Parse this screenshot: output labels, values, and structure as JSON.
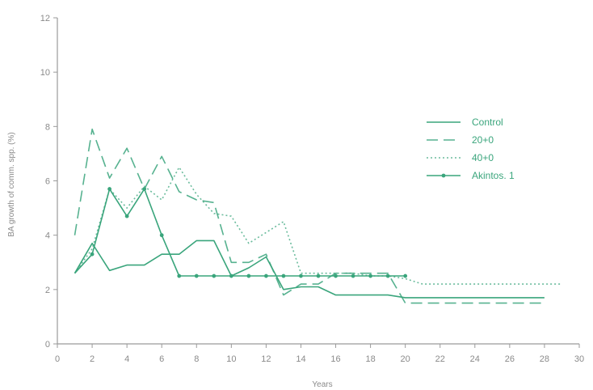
{
  "chart_data": {
    "type": "line",
    "xlabel": "Years",
    "ylabel": "BA growth of comm. spp. (%)",
    "xlim": [
      0,
      30
    ],
    "ylim": [
      0,
      12
    ],
    "xticks": [
      "0",
      "2",
      "4",
      "6",
      "8",
      "10",
      "12",
      "14",
      "16",
      "18",
      "20",
      "22",
      "24",
      "26",
      "28",
      "30"
    ],
    "yticks": [
      "0",
      "2",
      "4",
      "6",
      "8",
      "10",
      "12"
    ],
    "grid": false,
    "legend_position": "right",
    "color": "#3aa57c",
    "series": [
      {
        "name": "Control",
        "style": "solid",
        "x": [
          1,
          2,
          3,
          4,
          5,
          6,
          7,
          8,
          9,
          10,
          11,
          12,
          13,
          14,
          15,
          16,
          17,
          18,
          19,
          20,
          28
        ],
        "y": [
          2.6,
          3.7,
          2.7,
          2.9,
          2.9,
          3.3,
          3.3,
          3.8,
          3.8,
          2.5,
          2.8,
          3.2,
          2.0,
          2.1,
          2.1,
          1.8,
          1.8,
          1.8,
          1.8,
          1.7,
          1.7
        ]
      },
      {
        "name": "20+0",
        "style": "dashed",
        "x": [
          1,
          2,
          3,
          4,
          5,
          6,
          7,
          8,
          9,
          10,
          11,
          12,
          13,
          14,
          15,
          16,
          17,
          18,
          19,
          20,
          28
        ],
        "y": [
          4.0,
          7.9,
          6.1,
          7.2,
          5.7,
          6.9,
          5.6,
          5.3,
          5.2,
          3.0,
          3.0,
          3.3,
          1.8,
          2.2,
          2.2,
          2.6,
          2.6,
          2.6,
          2.6,
          1.5,
          1.5
        ]
      },
      {
        "name": "40+0",
        "style": "dotted",
        "x": [
          1,
          2,
          3,
          4,
          5,
          6,
          7,
          8,
          9,
          10,
          11,
          12,
          13,
          14,
          15,
          16,
          17,
          18,
          19,
          20,
          21,
          29
        ],
        "y": [
          2.6,
          3.5,
          5.7,
          5.0,
          5.8,
          5.3,
          6.5,
          5.5,
          4.8,
          4.7,
          3.7,
          4.1,
          4.5,
          2.6,
          2.6,
          2.6,
          2.6,
          2.5,
          2.5,
          2.4,
          2.2,
          2.2
        ]
      },
      {
        "name": "Akintos. 1",
        "style": "solid-markers",
        "x": [
          1,
          2,
          3,
          4,
          5,
          6,
          7,
          8,
          9,
          10,
          11,
          12,
          13,
          14,
          15,
          16,
          17,
          18,
          19,
          20
        ],
        "y": [
          2.6,
          3.3,
          5.7,
          4.7,
          5.7,
          4.0,
          2.5,
          2.5,
          2.5,
          2.5,
          2.5,
          2.5,
          2.5,
          2.5,
          2.5,
          2.5,
          2.5,
          2.5,
          2.5,
          2.5
        ]
      }
    ]
  }
}
